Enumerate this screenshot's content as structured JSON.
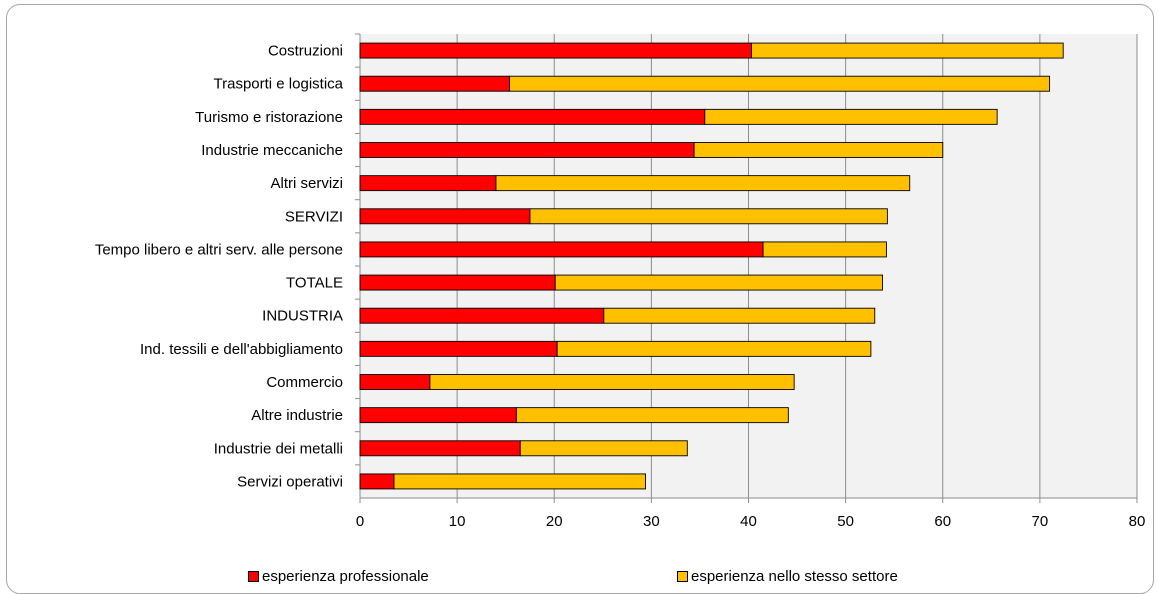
{
  "chart_data": {
    "type": "bar",
    "orientation": "horizontal",
    "stacked": true,
    "categories": [
      "Costruzioni",
      "Trasporti e logistica",
      "Turismo e ristorazione",
      "Industrie meccaniche",
      "Altri servizi",
      "SERVIZI",
      "Tempo libero e altri serv. alle persone",
      "TOTALE",
      "INDUSTRIA",
      "Ind. tessili e dell'abbigliamento",
      "Commercio",
      "Altre industrie",
      "Industrie dei metalli",
      "Servizi operativi"
    ],
    "series": [
      {
        "name": "esperienza professionale",
        "color": "#ff0000",
        "values": [
          40.3,
          15.4,
          35.5,
          34.4,
          14.0,
          17.5,
          41.5,
          20.1,
          25.1,
          20.3,
          7.2,
          16.1,
          16.5,
          3.5
        ]
      },
      {
        "name": "esperienza nello stesso settore",
        "color": "#ffc000",
        "values": [
          32.1,
          55.6,
          30.1,
          25.6,
          42.6,
          36.8,
          12.7,
          33.7,
          27.9,
          32.3,
          37.5,
          28.0,
          17.2,
          25.9
        ]
      }
    ],
    "xlim": [
      0,
      80
    ],
    "xticks": [
      "0",
      "10",
      "20",
      "30",
      "40",
      "50",
      "60",
      "70",
      "80"
    ],
    "grid": "vertical",
    "plot_background": "#f2f2f2",
    "legend_position": "bottom"
  }
}
